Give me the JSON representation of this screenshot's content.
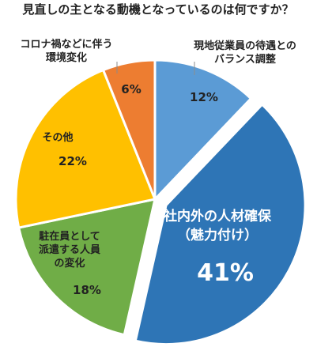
{
  "chart_data": {
    "type": "pie",
    "title": "見直しの主となる動機となっているのは何ですか？",
    "slices": [
      {
        "label_lines": [
          "現地従業員の待遇との",
          "バランス調整"
        ],
        "value": 12,
        "value_label": "12%",
        "color": "#5b9bd5"
      },
      {
        "label_lines": [
          "社内外の人材確保",
          "（魅力付け）"
        ],
        "value": 41,
        "value_label": "41%",
        "color": "#2e75b6",
        "exploded": true
      },
      {
        "label_lines": [
          "駐在員として",
          "派遣する人員",
          "の変化"
        ],
        "value": 18,
        "value_label": "18%",
        "color": "#70ad47"
      },
      {
        "label_lines": [
          "その他"
        ],
        "value": 22,
        "value_label": "22%",
        "color": "#ffc000"
      },
      {
        "label_lines": [
          "コロナ禍などに伴う",
          "環境変化"
        ],
        "value": 6,
        "value_label": "6%",
        "color": "#ed7d31"
      }
    ],
    "start": "12 o'clock",
    "direction": "clockwise",
    "legend": "none"
  }
}
